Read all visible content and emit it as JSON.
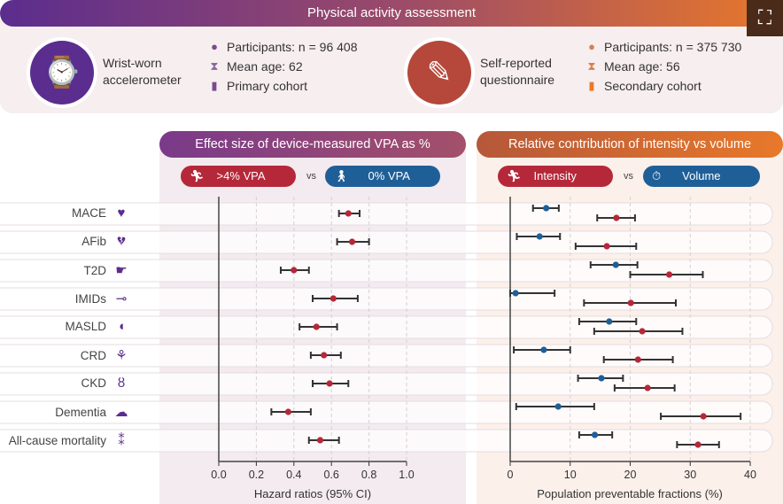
{
  "header": {
    "title": "Physical activity assessment"
  },
  "methods": [
    {
      "name": "Wrist-worn accelerometer",
      "name_lines": [
        "Wrist-worn",
        "accelerometer"
      ],
      "icon": "smartwatch-icon",
      "color": "#5b2d8e",
      "participants": "Participants: n = 96 408",
      "mean_age": "Mean age: 62",
      "cohort": "Primary cohort"
    },
    {
      "name": "Self-reported questionnaire",
      "name_lines": [
        "Self-reported",
        "questionnaire"
      ],
      "icon": "questionnaire-icon",
      "color": "#b5483a",
      "participants": "Participants: n = 375 730",
      "mean_age": "Mean age: 56",
      "cohort": "Secondary cohort"
    }
  ],
  "colors": {
    "purple": "#5b2d8e",
    "red": "#b5283a",
    "blue": "#1f5f98",
    "orange": "#e8782a"
  },
  "chart_data": [
    {
      "type": "forest",
      "title": "Effect size of device-measured VPA as %",
      "legend": [
        {
          "label": ">4% VPA",
          "color": "#b5283a",
          "icon": "running-icon"
        },
        {
          "label": "vs"
        },
        {
          "label": "0% VPA",
          "color": "#1f5f98",
          "icon": "walking-icon"
        }
      ],
      "xlabel": "Hazard ratios (95% CI)",
      "xlim": [
        0,
        1.0
      ],
      "xticks": [
        "0.0",
        "0.2",
        "0.4",
        "0.6",
        "0.8",
        "1.0"
      ],
      "grid": "vertical dashed",
      "categories": [
        "MACE",
        "AFib",
        "T2D",
        "IMIDs",
        "MASLD",
        "CRD",
        "CKD",
        "Dementia",
        "All-cause mortality"
      ],
      "series": [
        {
          "name": ">4% VPA",
          "color": "#b5283a",
          "values": [
            0.69,
            0.71,
            0.4,
            0.61,
            0.52,
            0.56,
            0.59,
            0.37,
            0.54
          ],
          "lower": [
            0.64,
            0.63,
            0.33,
            0.5,
            0.43,
            0.49,
            0.5,
            0.28,
            0.48
          ],
          "upper": [
            0.75,
            0.8,
            0.48,
            0.74,
            0.63,
            0.65,
            0.69,
            0.49,
            0.64
          ]
        }
      ]
    },
    {
      "type": "forest",
      "title": "Relative contribution of intensity vs volume",
      "legend": [
        {
          "label": "Intensity",
          "color": "#b5283a",
          "icon": "running-icon"
        },
        {
          "label": "vs"
        },
        {
          "label": "Volume",
          "color": "#1f5f98",
          "icon": "stopwatch-icon"
        }
      ],
      "xlabel": "Population preventable fractions (%)",
      "xlim": [
        0,
        40
      ],
      "xticks": [
        "0",
        "10",
        "20",
        "30",
        "40"
      ],
      "grid": "vertical dashed",
      "categories": [
        "MACE",
        "AFib",
        "T2D",
        "IMIDs",
        "MASLD",
        "CRD",
        "CKD",
        "Dementia",
        "All-cause mortality"
      ],
      "series": [
        {
          "name": "Volume",
          "color": "#1f5f98",
          "values": [
            6.0,
            4.9,
            17.6,
            0.9,
            16.5,
            5.6,
            15.2,
            8.0,
            14.1
          ],
          "lower": [
            3.8,
            1.1,
            13.4,
            0,
            11.5,
            0.6,
            11.3,
            1.0,
            11.5
          ],
          "upper": [
            8.1,
            8.3,
            21.2,
            7.4,
            21.0,
            10.0,
            18.8,
            14.0,
            17.0
          ]
        },
        {
          "name": "Intensity",
          "color": "#b5283a",
          "values": [
            17.7,
            16.1,
            26.5,
            20.1,
            22.0,
            21.3,
            22.9,
            32.2,
            31.3
          ],
          "lower": [
            14.5,
            10.9,
            20.0,
            12.3,
            14.0,
            15.6,
            17.4,
            25.1,
            27.8
          ],
          "upper": [
            20.8,
            21.0,
            32.1,
            27.6,
            28.7,
            27.1,
            27.4,
            38.4,
            34.8
          ]
        }
      ]
    }
  ],
  "row_icons": [
    "heart-icon",
    "broken-heart-icon",
    "pancreas-icon",
    "joint-icon",
    "liver-icon",
    "lungs-icon",
    "kidneys-icon",
    "brain-icon",
    "footprints-icon"
  ]
}
